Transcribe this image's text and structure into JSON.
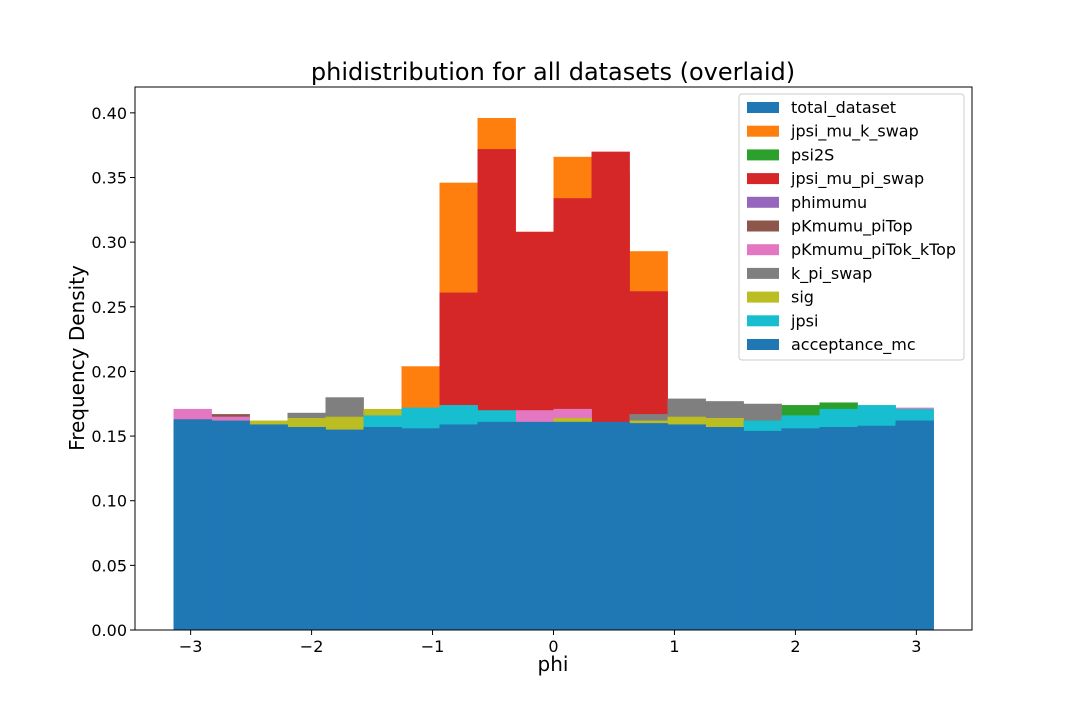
{
  "chart_data": {
    "type": "bar",
    "title": "phidistribution for all datasets (overlaid)",
    "xlabel": "phi",
    "ylabel": "Frequency Density",
    "xlim": [
      -3.46,
      3.46
    ],
    "ylim": [
      0,
      0.42
    ],
    "xticks": [
      -3,
      -2,
      -1,
      0,
      1,
      2,
      3
    ],
    "xtick_labels": [
      "−3",
      "−2",
      "−1",
      "0",
      "1",
      "2",
      "3"
    ],
    "yticks": [
      0,
      0.05,
      0.1,
      0.15,
      0.2,
      0.25,
      0.3,
      0.35,
      0.4
    ],
    "ytick_labels": [
      "0.00",
      "0.05",
      "0.10",
      "0.15",
      "0.20",
      "0.25",
      "0.30",
      "0.35",
      "0.40"
    ],
    "bin_edges": [
      -3.1416,
      -2.8274,
      -2.5133,
      -2.1991,
      -1.885,
      -1.5708,
      -1.2566,
      -0.9425,
      -0.6283,
      -0.3142,
      0,
      0.3142,
      0.6283,
      0.9425,
      1.2566,
      1.5708,
      1.885,
      2.1991,
      2.5133,
      2.8274,
      3.1416
    ],
    "grid": false,
    "legend_position": "top-right",
    "series": [
      {
        "name": "total_dataset",
        "color": "#1f77b4",
        "values": [
          0.163,
          0.162,
          0.159,
          0.158,
          0.156,
          0.158,
          0.158,
          0.16,
          0.161,
          0.161,
          0.161,
          0.161,
          0.16,
          0.159,
          0.158,
          0.155,
          0.157,
          0.158,
          0.159,
          0.162
        ]
      },
      {
        "name": "jpsi_mu_k_swap",
        "color": "#ff7f0e",
        "values": [
          0.0,
          0.0,
          0.0,
          0.0,
          0.0,
          0.0,
          0.204,
          0.346,
          0.396,
          0.308,
          0.366,
          0.354,
          0.293,
          0.0,
          0.0,
          0.0,
          0.0,
          0.0,
          0.0,
          0.0
        ]
      },
      {
        "name": "psi2S",
        "color": "#2ca02c",
        "values": [
          0.0,
          0.0,
          0.0,
          0.0,
          0.0,
          0.0,
          0.0,
          0.0,
          0.0,
          0.0,
          0.0,
          0.0,
          0.0,
          0.0,
          0.0,
          0.0,
          0.174,
          0.176,
          0.173,
          0.0
        ]
      },
      {
        "name": "jpsi_mu_pi_swap",
        "color": "#d62728",
        "values": [
          0.0,
          0.0,
          0.0,
          0.0,
          0.0,
          0.0,
          0.0,
          0.261,
          0.372,
          0.308,
          0.334,
          0.37,
          0.262,
          0.0,
          0.0,
          0.0,
          0.0,
          0.0,
          0.0,
          0.0
        ]
      },
      {
        "name": "phimumu",
        "color": "#9467bd",
        "values": [
          0.0,
          0.0,
          0.0,
          0.0,
          0.0,
          0.0,
          0.0,
          0.0,
          0.0,
          0.0,
          0.0,
          0.0,
          0.0,
          0.0,
          0.0,
          0.0,
          0.0,
          0.0,
          0.0,
          0.0
        ]
      },
      {
        "name": "pKmumu_piTop",
        "color": "#8c564b",
        "values": [
          0.0,
          0.167,
          0.0,
          0.0,
          0.0,
          0.0,
          0.0,
          0.0,
          0.0,
          0.0,
          0.0,
          0.0,
          0.0,
          0.0,
          0.0,
          0.0,
          0.0,
          0.0,
          0.0,
          0.0
        ]
      },
      {
        "name": "pKmumu_piTok_kTop",
        "color": "#e377c2",
        "values": [
          0.171,
          0.165,
          0.0,
          0.0,
          0.0,
          0.0,
          0.0,
          0.0,
          0.0,
          0.17,
          0.171,
          0.0,
          0.0,
          0.0,
          0.0,
          0.0,
          0.0,
          0.0,
          0.0,
          0.172
        ]
      },
      {
        "name": "k_pi_swap",
        "color": "#7f7f7f",
        "values": [
          0.0,
          0.0,
          0.0,
          0.168,
          0.18,
          0.0,
          0.0,
          0.0,
          0.0,
          0.0,
          0.0,
          0.0,
          0.167,
          0.179,
          0.177,
          0.175,
          0.0,
          0.0,
          0.0,
          0.0
        ]
      },
      {
        "name": "sig",
        "color": "#bcbd22",
        "values": [
          0.0,
          0.0,
          0.162,
          0.164,
          0.165,
          0.171,
          0.0,
          0.0,
          0.0,
          0.0,
          0.164,
          0.0,
          0.162,
          0.165,
          0.164,
          0.0,
          0.0,
          0.0,
          0.0,
          0.0
        ]
      },
      {
        "name": "jpsi",
        "color": "#17becf",
        "values": [
          0.0,
          0.0,
          0.0,
          0.0,
          0.0,
          0.166,
          0.172,
          0.174,
          0.17,
          0.0,
          0.0,
          0.0,
          0.0,
          0.0,
          0.0,
          0.162,
          0.166,
          0.171,
          0.174,
          0.171
        ]
      },
      {
        "name": "acceptance_mc",
        "color": "#1f77b4",
        "values": [
          0.163,
          0.162,
          0.159,
          0.157,
          0.155,
          0.157,
          0.156,
          0.159,
          0.161,
          0.161,
          0.161,
          0.161,
          0.16,
          0.159,
          0.157,
          0.154,
          0.156,
          0.157,
          0.158,
          0.162
        ]
      }
    ]
  }
}
